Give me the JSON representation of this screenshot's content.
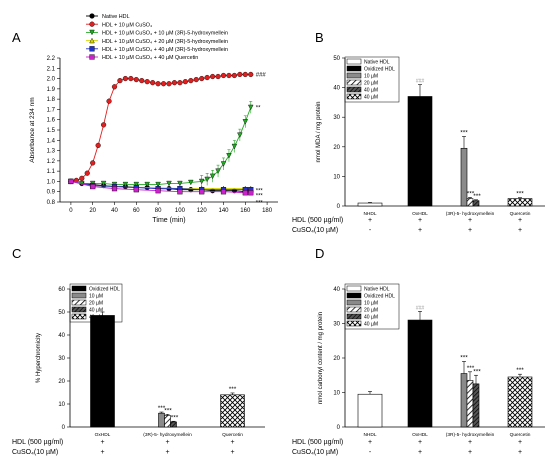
{
  "colors": {
    "native": "#000000",
    "cuso4": "#e02020",
    "r10": "#22aa22",
    "r20": "#d8d800",
    "r40": "#2233cc",
    "quer": "#cc22cc",
    "axis": "#000000"
  },
  "chart_data": [
    {
      "panel": "A",
      "type": "line",
      "xlabel": "Time (min)",
      "ylabel": "Absorbance at 234 nm",
      "xlim": [
        -10,
        190
      ],
      "ylim": [
        0.8,
        2.2
      ],
      "xticks": [
        0,
        20,
        40,
        60,
        80,
        100,
        120,
        140,
        160,
        180
      ],
      "yticks": [
        0.8,
        0.9,
        1.0,
        1.1,
        1.2,
        1.3,
        1.4,
        1.5,
        1.6,
        1.7,
        1.8,
        1.9,
        2.0,
        2.1,
        2.2
      ],
      "grid": false,
      "legend_position": "top-left",
      "series": [
        {
          "name": "Native HDL",
          "marker": "circle",
          "color_key": "native",
          "x": [
            0,
            10,
            20,
            30,
            40,
            50,
            60,
            70,
            80,
            90,
            100,
            110,
            120,
            130,
            140,
            150,
            160,
            165
          ],
          "y": [
            1.0,
            0.98,
            0.97,
            0.96,
            0.95,
            0.95,
            0.94,
            0.94,
            0.93,
            0.93,
            0.92,
            0.92,
            0.92,
            0.91,
            0.91,
            0.91,
            0.9,
            0.9
          ]
        },
        {
          "name": "HDL + 10 µM CuSO4",
          "marker": "circle",
          "color_key": "cuso4",
          "end_label": "###",
          "x": [
            0,
            5,
            10,
            15,
            20,
            25,
            30,
            35,
            40,
            45,
            50,
            55,
            60,
            65,
            70,
            75,
            80,
            85,
            90,
            95,
            100,
            105,
            110,
            115,
            120,
            125,
            130,
            135,
            140,
            145,
            150,
            155,
            160,
            165
          ],
          "y": [
            1.0,
            1.01,
            1.03,
            1.08,
            1.18,
            1.35,
            1.55,
            1.78,
            1.92,
            1.98,
            2.0,
            2.0,
            1.99,
            1.98,
            1.97,
            1.96,
            1.95,
            1.95,
            1.95,
            1.96,
            1.96,
            1.97,
            1.98,
            1.99,
            2.0,
            2.01,
            2.02,
            2.02,
            2.03,
            2.03,
            2.03,
            2.04,
            2.04,
            2.04
          ]
        },
        {
          "name": "HDL + 10 µM CuSO4 + 10 µM (3R)-5-hydroxymellein",
          "marker": "triangle-down",
          "color_key": "r10",
          "end_label": "**",
          "x": [
            0,
            10,
            20,
            30,
            40,
            50,
            60,
            70,
            80,
            90,
            100,
            110,
            120,
            125,
            130,
            135,
            140,
            145,
            150,
            155,
            160,
            165
          ],
          "y": [
            1.0,
            0.98,
            0.98,
            0.98,
            0.97,
            0.97,
            0.97,
            0.97,
            0.97,
            0.98,
            0.98,
            0.99,
            1.0,
            1.02,
            1.05,
            1.1,
            1.17,
            1.25,
            1.34,
            1.45,
            1.58,
            1.72
          ]
        },
        {
          "name": "HDL + 10 µM CuSO4 + 20 µM (3R)-5-hydroxymellein",
          "marker": "triangle-up",
          "color_key": "r20",
          "end_label": "***",
          "x": [
            0,
            20,
            40,
            60,
            80,
            100,
            120,
            140,
            160,
            165
          ],
          "y": [
            1.0,
            0.96,
            0.95,
            0.94,
            0.94,
            0.93,
            0.93,
            0.93,
            0.93,
            0.93
          ]
        },
        {
          "name": "HDL + 10 µM CuSO4 + 40 µM (3R)-5-hydroxymellein",
          "marker": "square",
          "color_key": "r40",
          "end_label": "***",
          "x": [
            0,
            20,
            40,
            60,
            80,
            100,
            120,
            140,
            160,
            165
          ],
          "y": [
            1.0,
            0.96,
            0.95,
            0.94,
            0.93,
            0.93,
            0.92,
            0.92,
            0.92,
            0.92
          ]
        },
        {
          "name": "HDL + 10 µM CuSO4 + 40 µM Quercetin",
          "marker": "square",
          "color_key": "quer",
          "end_label": "***",
          "x": [
            0,
            20,
            40,
            60,
            80,
            100,
            120,
            140,
            160,
            165
          ],
          "y": [
            1.0,
            0.95,
            0.93,
            0.92,
            0.91,
            0.9,
            0.9,
            0.9,
            0.89,
            0.89
          ]
        }
      ]
    },
    {
      "panel": "B",
      "type": "bar",
      "ylabel": "nmol MDA / mg protein",
      "ylim": [
        0,
        50
      ],
      "yticks": [
        0,
        10,
        20,
        30,
        40,
        50
      ],
      "legend_position": "top-left",
      "legend": [
        "Native HDL",
        "Oxidized HDL",
        "10 µM",
        "20 µM",
        "40 µM",
        "40 µM"
      ],
      "groups": [
        "NHDL",
        "OxHDL",
        "(3R)-5- hydroxymellein",
        "Quercetin"
      ],
      "bars": [
        {
          "group": 0,
          "fill": "white",
          "value": 1.0,
          "err": 0.2,
          "sig": ""
        },
        {
          "group": 1,
          "fill": "black",
          "value": 37,
          "err": 4,
          "sig": "###"
        },
        {
          "group": 2,
          "fill": "gray",
          "value": 19.5,
          "err": 4,
          "sig": "***"
        },
        {
          "group": 2,
          "fill": "hatch",
          "value": 2.5,
          "err": 0.4,
          "sig": "***"
        },
        {
          "group": 2,
          "fill": "darkhatch",
          "value": 1.8,
          "err": 0.3,
          "sig": "***"
        },
        {
          "group": 3,
          "fill": "cross",
          "value": 2.5,
          "err": 0.3,
          "sig": "***"
        }
      ],
      "rows": [
        {
          "label": "HDL (500 µg/ml)",
          "marks": [
            "+",
            "+",
            "+",
            "+"
          ]
        },
        {
          "label": "CuSO4(10 µM)",
          "marks": [
            "-",
            "+",
            "+",
            "+"
          ]
        }
      ]
    },
    {
      "panel": "C",
      "type": "bar",
      "ylabel": "% Hyperchromicity",
      "ylim": [
        0,
        60
      ],
      "yticks": [
        0,
        10,
        20,
        30,
        40,
        50,
        60
      ],
      "legend_position": "top-left",
      "legend": [
        "Oxidized HDL",
        "10 µM",
        "20 µM",
        "40 µM",
        "40 µM"
      ],
      "groups": [
        "OxHDL",
        "(3R)-5- hydroxymellein",
        "Quercetin"
      ],
      "bars": [
        {
          "group": 0,
          "fill": "black",
          "value": 48.5,
          "err": 1.5,
          "sig": ""
        },
        {
          "group": 1,
          "fill": "gray",
          "value": 6.0,
          "err": 0.5,
          "sig": "***"
        },
        {
          "group": 1,
          "fill": "hatch",
          "value": 5.0,
          "err": 0.5,
          "sig": "***"
        },
        {
          "group": 1,
          "fill": "darkhatch",
          "value": 2.2,
          "err": 0.3,
          "sig": "***"
        },
        {
          "group": 2,
          "fill": "cross",
          "value": 14.0,
          "err": 0.8,
          "sig": "***"
        }
      ],
      "rows": [
        {
          "label": "HDL (500 µg/ml)",
          "marks": [
            "+",
            "+",
            "+"
          ]
        },
        {
          "label": "CuSO4(10 µM)",
          "marks": [
            "+",
            "+",
            "+"
          ]
        }
      ]
    },
    {
      "panel": "D",
      "type": "bar",
      "ylabel": "nmol carbonyl content / mg protein",
      "ylim": [
        0,
        40
      ],
      "yticks": [
        0,
        10,
        20,
        30,
        40
      ],
      "legend_position": "top-left",
      "legend": [
        "Native HDL",
        "Oxidized HDL",
        "10 µM",
        "20 µM",
        "40 µM",
        "40 µM"
      ],
      "groups": [
        "NHDL",
        "OxHDL",
        "(3R)-5- hydroxymellein",
        "Quercetin"
      ],
      "bars": [
        {
          "group": 0,
          "fill": "white",
          "value": 9.5,
          "err": 0.8,
          "sig": ""
        },
        {
          "group": 1,
          "fill": "black",
          "value": 31,
          "err": 2.5,
          "sig": "###"
        },
        {
          "group": 2,
          "fill": "gray",
          "value": 15.5,
          "err": 3.5,
          "sig": "***"
        },
        {
          "group": 2,
          "fill": "hatch",
          "value": 13.5,
          "err": 2.5,
          "sig": "***"
        },
        {
          "group": 2,
          "fill": "darkhatch",
          "value": 12.5,
          "err": 2.5,
          "sig": "***"
        },
        {
          "group": 3,
          "fill": "cross",
          "value": 14.5,
          "err": 0.8,
          "sig": "***"
        }
      ],
      "rows": [
        {
          "label": "HDL (500 µg/ml)",
          "marks": [
            "+",
            "+",
            "+",
            "+"
          ]
        },
        {
          "label": "CuSO4(10 µM)",
          "marks": [
            "-",
            "+",
            "+",
            "+"
          ]
        }
      ]
    }
  ]
}
